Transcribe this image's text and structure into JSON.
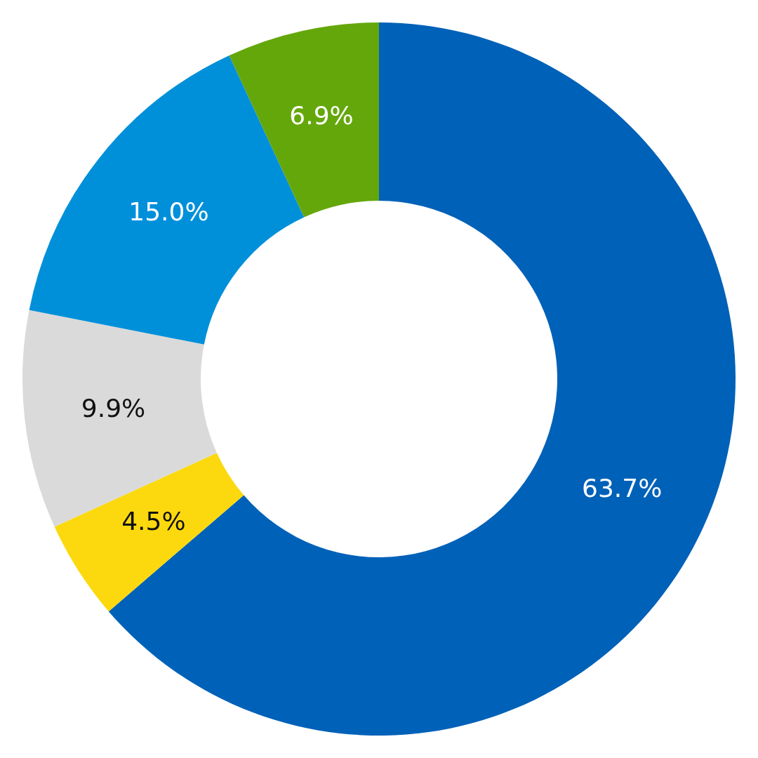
{
  "chart_data": {
    "type": "donut",
    "categories": [
      null,
      null,
      null,
      null,
      null
    ],
    "values": [
      63.7,
      4.5,
      9.9,
      15.0,
      6.9
    ],
    "colors": [
      "#0061b8",
      "#fcd90e",
      "#dadada",
      "#0090da",
      "#64a70b"
    ],
    "value_labels": [
      "63.7%",
      "4.5%",
      "9.9%",
      "15.0%",
      "6.9%"
    ]
  }
}
